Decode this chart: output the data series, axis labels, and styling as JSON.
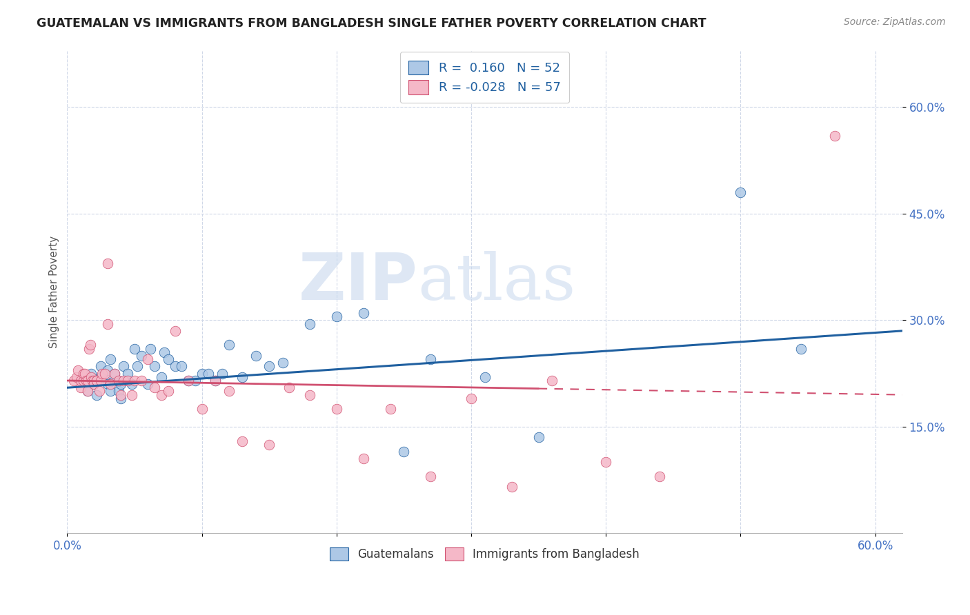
{
  "title": "GUATEMALAN VS IMMIGRANTS FROM BANGLADESH SINGLE FATHER POVERTY CORRELATION CHART",
  "source": "Source: ZipAtlas.com",
  "ylabel": "Single Father Poverty",
  "ytick_labels": [
    "15.0%",
    "30.0%",
    "45.0%",
    "60.0%"
  ],
  "ytick_values": [
    0.15,
    0.3,
    0.45,
    0.6
  ],
  "xlim": [
    0.0,
    0.62
  ],
  "ylim": [
    0.0,
    0.68
  ],
  "legend_blue_R": "0.160",
  "legend_blue_N": "52",
  "legend_pink_R": "-0.028",
  "legend_pink_N": "57",
  "legend_label_blue": "Guatemalans",
  "legend_label_pink": "Immigrants from Bangladesh",
  "blue_color": "#adc8e6",
  "pink_color": "#f5b8c8",
  "blue_line_color": "#2060a0",
  "pink_line_color": "#d05070",
  "watermark_zip": "ZIP",
  "watermark_atlas": "atlas",
  "background_color": "#ffffff",
  "blue_scatter_x": [
    0.015,
    0.018,
    0.02,
    0.022,
    0.025,
    0.025,
    0.028,
    0.03,
    0.03,
    0.032,
    0.032,
    0.035,
    0.035,
    0.038,
    0.038,
    0.04,
    0.04,
    0.042,
    0.045,
    0.045,
    0.048,
    0.05,
    0.052,
    0.055,
    0.06,
    0.062,
    0.065,
    0.07,
    0.072,
    0.075,
    0.08,
    0.085,
    0.09,
    0.095,
    0.1,
    0.105,
    0.11,
    0.115,
    0.12,
    0.13,
    0.14,
    0.15,
    0.16,
    0.18,
    0.2,
    0.22,
    0.25,
    0.27,
    0.31,
    0.35,
    0.5,
    0.545
  ],
  "blue_scatter_y": [
    0.2,
    0.225,
    0.21,
    0.195,
    0.22,
    0.235,
    0.215,
    0.21,
    0.23,
    0.2,
    0.245,
    0.215,
    0.225,
    0.2,
    0.215,
    0.19,
    0.21,
    0.235,
    0.215,
    0.225,
    0.21,
    0.26,
    0.235,
    0.25,
    0.21,
    0.26,
    0.235,
    0.22,
    0.255,
    0.245,
    0.235,
    0.235,
    0.215,
    0.215,
    0.225,
    0.225,
    0.215,
    0.225,
    0.265,
    0.22,
    0.25,
    0.235,
    0.24,
    0.295,
    0.305,
    0.31,
    0.115,
    0.245,
    0.22,
    0.135,
    0.48,
    0.26
  ],
  "pink_scatter_x": [
    0.005,
    0.007,
    0.008,
    0.01,
    0.01,
    0.012,
    0.012,
    0.013,
    0.014,
    0.015,
    0.015,
    0.016,
    0.017,
    0.018,
    0.019,
    0.02,
    0.02,
    0.022,
    0.022,
    0.024,
    0.025,
    0.026,
    0.028,
    0.03,
    0.03,
    0.032,
    0.035,
    0.038,
    0.04,
    0.042,
    0.045,
    0.048,
    0.05,
    0.055,
    0.06,
    0.065,
    0.07,
    0.075,
    0.08,
    0.09,
    0.1,
    0.11,
    0.12,
    0.13,
    0.15,
    0.165,
    0.18,
    0.2,
    0.22,
    0.24,
    0.27,
    0.3,
    0.33,
    0.36,
    0.4,
    0.44,
    0.57
  ],
  "pink_scatter_y": [
    0.215,
    0.22,
    0.23,
    0.205,
    0.215,
    0.215,
    0.225,
    0.225,
    0.215,
    0.2,
    0.215,
    0.26,
    0.265,
    0.22,
    0.215,
    0.215,
    0.21,
    0.215,
    0.215,
    0.2,
    0.215,
    0.225,
    0.225,
    0.295,
    0.38,
    0.21,
    0.225,
    0.215,
    0.195,
    0.215,
    0.215,
    0.195,
    0.215,
    0.215,
    0.245,
    0.205,
    0.195,
    0.2,
    0.285,
    0.215,
    0.175,
    0.215,
    0.2,
    0.13,
    0.125,
    0.205,
    0.195,
    0.175,
    0.105,
    0.175,
    0.08,
    0.19,
    0.065,
    0.215,
    0.1,
    0.08,
    0.56
  ],
  "blue_line_y_start": 0.205,
  "blue_line_y_end": 0.285,
  "pink_line_y_start": 0.215,
  "pink_line_y_end": 0.195
}
